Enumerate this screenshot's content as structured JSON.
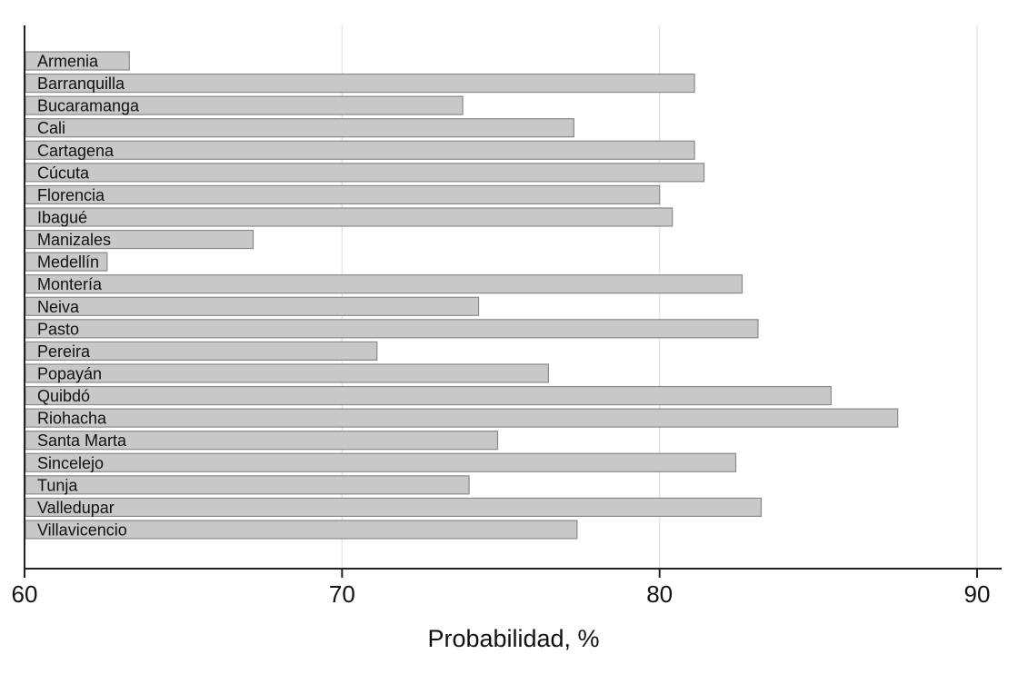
{
  "chart_data": {
    "type": "bar",
    "orientation": "horizontal",
    "categories": [
      "Armenia",
      "Barranquilla",
      "Bucaramanga",
      "Cali",
      "Cartagena",
      "Cúcuta",
      "Florencia",
      "Ibagué",
      "Manizales",
      "Medellín",
      "Montería",
      "Neiva",
      "Pasto",
      "Pereira",
      "Popayán",
      "Quibdó",
      "Riohacha",
      "Santa Marta",
      "Sincelejo",
      "Tunja",
      "Valledupar",
      "Villavicencio"
    ],
    "values": [
      63.3,
      81.1,
      73.8,
      77.3,
      81.1,
      81.4,
      80.0,
      80.4,
      67.2,
      62.6,
      82.6,
      74.3,
      83.1,
      71.1,
      76.5,
      85.4,
      87.5,
      74.9,
      82.4,
      74.0,
      83.2,
      77.4
    ],
    "title": "",
    "xlabel": "Probabilidad, %",
    "ylabel": "",
    "xlim": [
      60,
      90
    ],
    "xticks": [
      "60",
      "70",
      "80",
      "90"
    ],
    "grid": true,
    "colors": {
      "bar": "#c8c8c8",
      "bar_edge": "#8a8a8a",
      "grid": "#e6e6e6",
      "axis": "#222222"
    }
  }
}
